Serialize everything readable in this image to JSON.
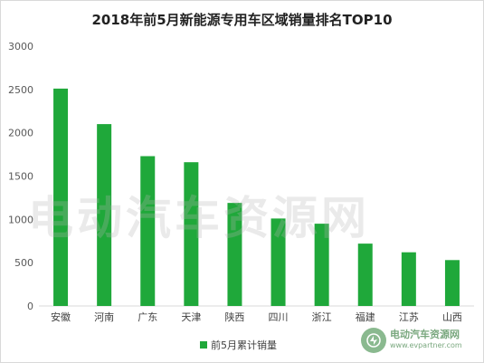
{
  "chart_data": {
    "type": "bar",
    "title": "2018年前5月新能源专用车区域销量排名TOP10",
    "categories": [
      "安徽",
      "河南",
      "广东",
      "天津",
      "陕西",
      "四川",
      "浙江",
      "福建",
      "江苏",
      "山西"
    ],
    "series": [
      {
        "name": "前5月累计销量",
        "values": [
          2510,
          2100,
          1730,
          1660,
          1190,
          1010,
          950,
          720,
          620,
          530
        ]
      }
    ],
    "xlabel": "",
    "ylabel": "",
    "ylim": [
      0,
      3000
    ],
    "yticks": [
      "0",
      "500",
      "1000",
      "1500",
      "2000",
      "2500",
      "3000"
    ],
    "grid": false,
    "legend_position": "bottom",
    "bar_color": "#1fa83a"
  },
  "watermark": "电动汽车资源网",
  "logo": {
    "name": "电动汽车资源网",
    "url": "www.evpartner.com"
  }
}
